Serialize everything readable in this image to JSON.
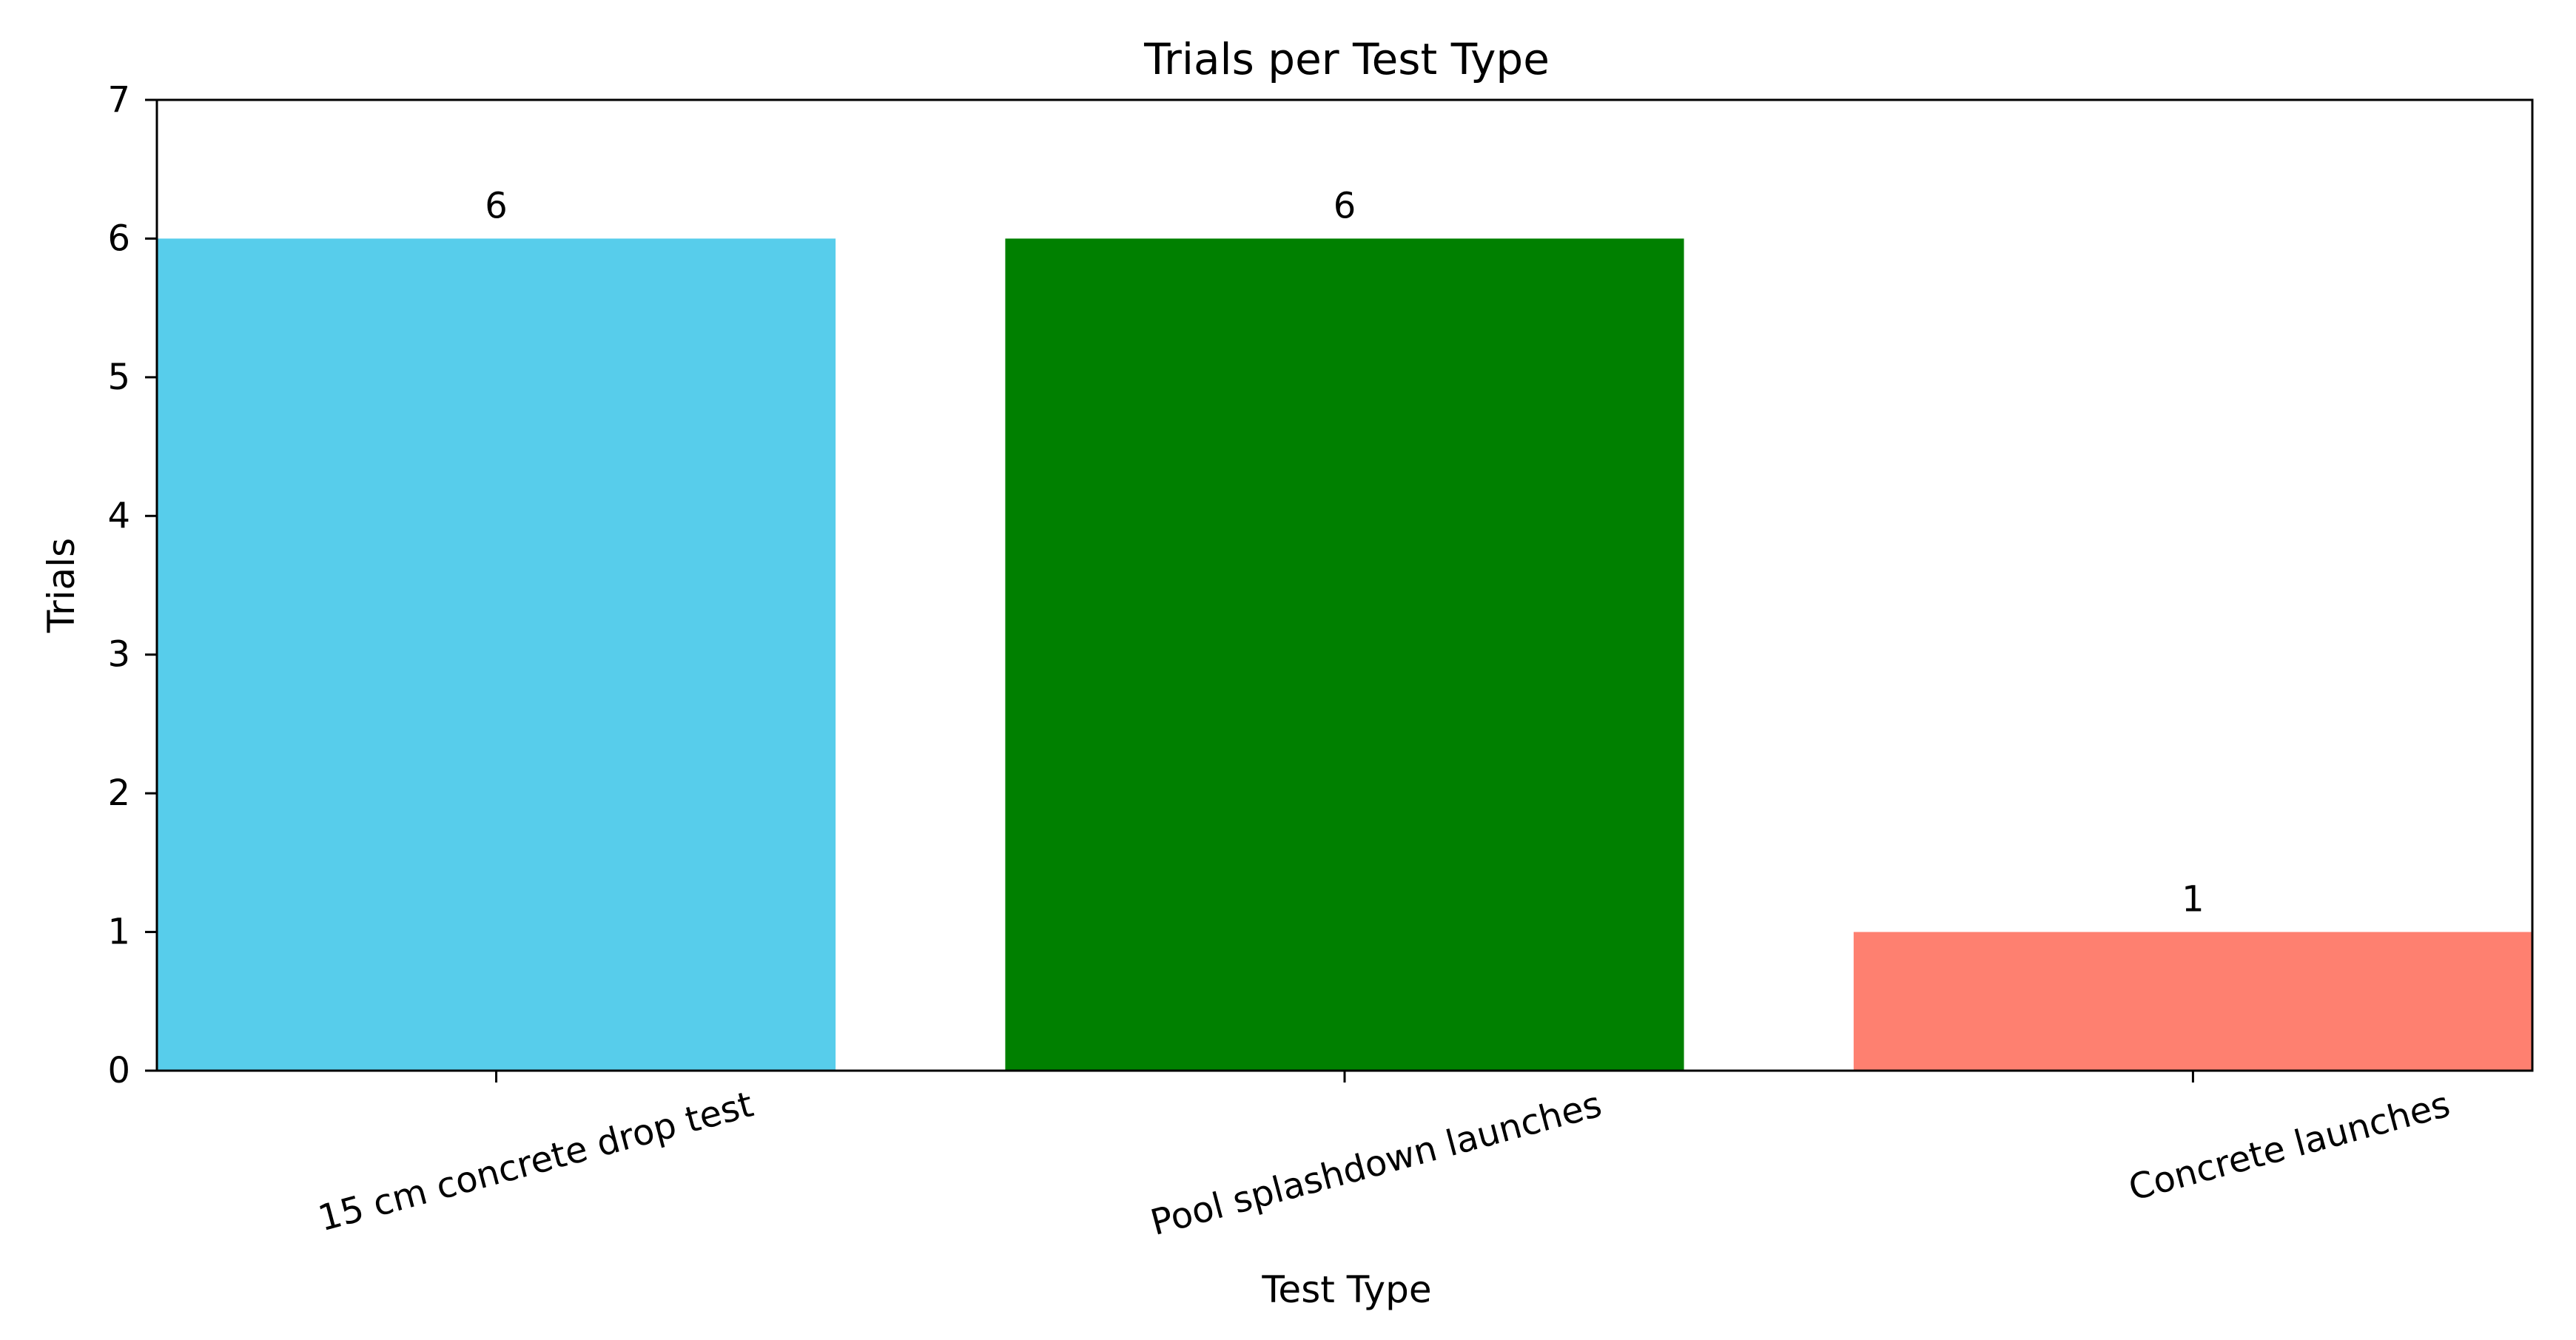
{
  "chart_data": {
    "type": "bar",
    "title": "Trials per Test Type",
    "xlabel": "Test Type",
    "ylabel": "Trials",
    "categories": [
      "15 cm concrete drop test",
      "Pool splashdown launches",
      "Concrete launches"
    ],
    "values": [
      6,
      6,
      1
    ],
    "data_labels": [
      "6",
      "6",
      "1"
    ],
    "colors": [
      "#57cdeb",
      "#008000",
      "#fe8070"
    ],
    "ylim": [
      0,
      7
    ],
    "yticks": [
      0,
      1,
      2,
      3,
      4,
      5,
      6,
      7
    ],
    "grid": false,
    "legend": "none"
  }
}
